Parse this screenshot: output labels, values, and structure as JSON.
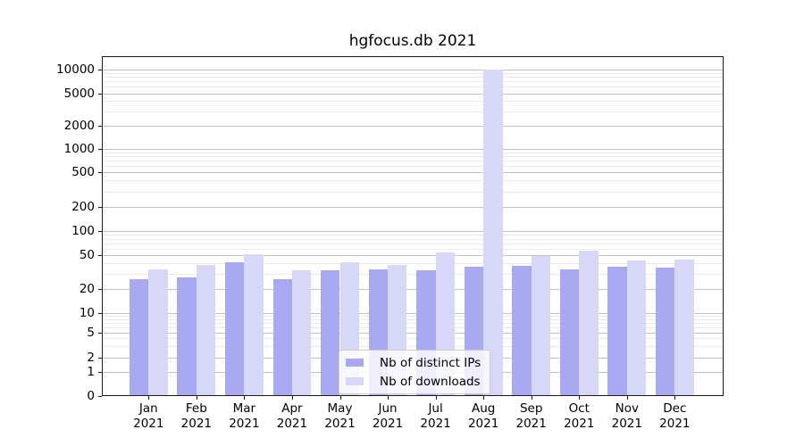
{
  "title": "hgfocus.db 2021",
  "legend": {
    "items": [
      {
        "label": "Nb of distinct IPs",
        "color": "#a9a9f1"
      },
      {
        "label": "Nb of downloads",
        "color": "#d7d7f7"
      }
    ]
  },
  "y_axis": {
    "tick_labels": [
      "0",
      "1",
      "2",
      "5",
      "10",
      "20",
      "50",
      "100",
      "200",
      "500",
      "1000",
      "2000",
      "5000",
      "10000"
    ]
  },
  "x_axis": {
    "year": "2021",
    "months": [
      "Jan",
      "Feb",
      "Mar",
      "Apr",
      "May",
      "Jun",
      "Jul",
      "Aug",
      "Sep",
      "Oct",
      "Nov",
      "Dec"
    ]
  },
  "chart_data": {
    "type": "bar",
    "title": "hgfocus.db 2021",
    "categories": [
      "Jan 2021",
      "Feb 2021",
      "Mar 2021",
      "Apr 2021",
      "May 2021",
      "Jun 2021",
      "Jul 2021",
      "Aug 2021",
      "Sep 2021",
      "Oct 2021",
      "Nov 2021",
      "Dec 2021"
    ],
    "series": [
      {
        "name": "Nb of distinct IPs",
        "color": "#a9a9f1",
        "values": [
          26,
          27,
          41,
          26,
          33,
          34,
          33,
          36,
          37,
          34,
          36,
          35
        ]
      },
      {
        "name": "Nb of downloads",
        "color": "#d7d7f7",
        "values": [
          34,
          38,
          51,
          33,
          41,
          38,
          53,
          10000,
          48,
          56,
          43,
          44
        ]
      }
    ],
    "xlabel": "",
    "ylabel": "",
    "yscale": "symlog",
    "yticks": [
      0,
      1,
      2,
      5,
      10,
      20,
      50,
      100,
      200,
      500,
      1000,
      2000,
      5000,
      10000
    ],
    "ylim": [
      0,
      20000
    ],
    "grid": "horizontal major+minor",
    "legend_position": "lower center"
  }
}
